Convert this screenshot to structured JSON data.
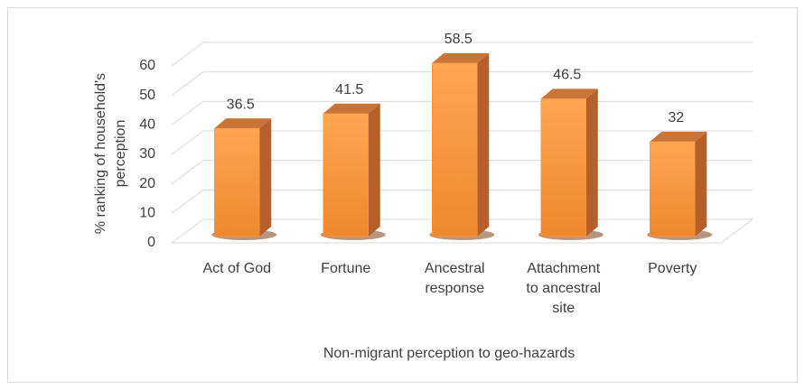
{
  "chart_data": {
    "type": "bar3d",
    "categories": [
      "Act of God",
      "Fortune",
      "Ancestral response",
      "Attachment to ancestral site",
      "Poverty"
    ],
    "values": [
      36.5,
      41.5,
      58.5,
      46.5,
      32
    ],
    "color": "#f79646",
    "y_label": "% ranking of household's perception",
    "x_label": "Non-migrant perception to geo-hazards",
    "ylim": [
      0,
      60
    ],
    "yticks": [
      0,
      10,
      20,
      30,
      40,
      50,
      60
    ],
    "grid": true
  }
}
